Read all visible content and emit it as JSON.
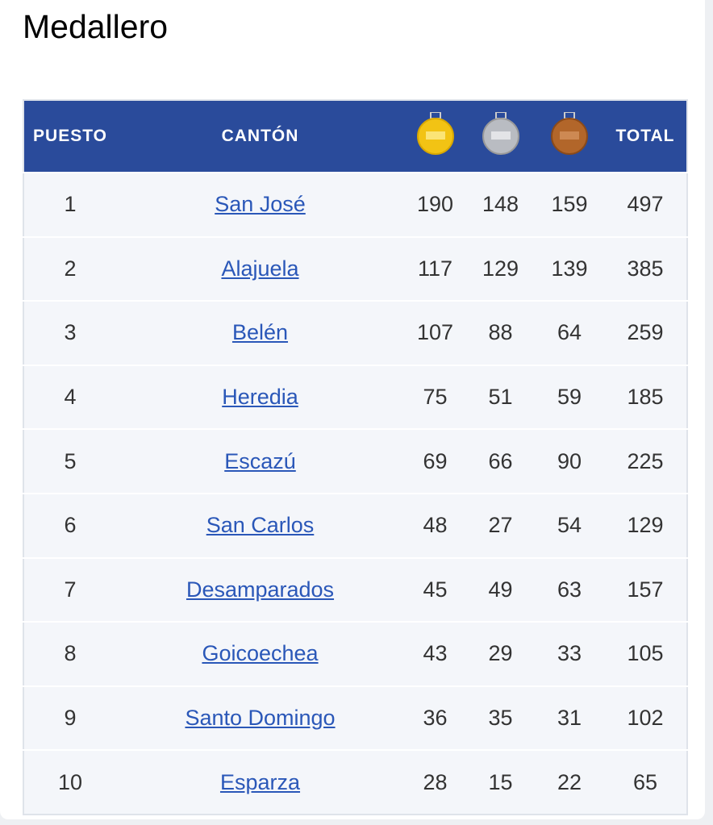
{
  "header": {
    "title": "Medallero"
  },
  "table": {
    "columns": [
      "PUESTO",
      "CANTÓN",
      "TOTAL"
    ],
    "rows": [
      [
        1,
        "San José",
        190,
        148,
        159,
        497
      ],
      [
        2,
        "Alajuela",
        117,
        129,
        139,
        385
      ],
      [
        3,
        "Belén",
        107,
        88,
        64,
        259
      ],
      [
        4,
        "Heredia",
        75,
        51,
        59,
        185
      ],
      [
        5,
        "Escazú",
        69,
        66,
        90,
        225
      ],
      [
        6,
        "San Carlos",
        48,
        27,
        54,
        129
      ],
      [
        7,
        "Desamparados",
        45,
        49,
        63,
        157
      ],
      [
        8,
        "Goicoechea",
        43,
        29,
        33,
        105
      ],
      [
        9,
        "Santo Domingo",
        36,
        35,
        31,
        102
      ],
      [
        10,
        "Esparza",
        28,
        15,
        22,
        65
      ]
    ]
  }
}
